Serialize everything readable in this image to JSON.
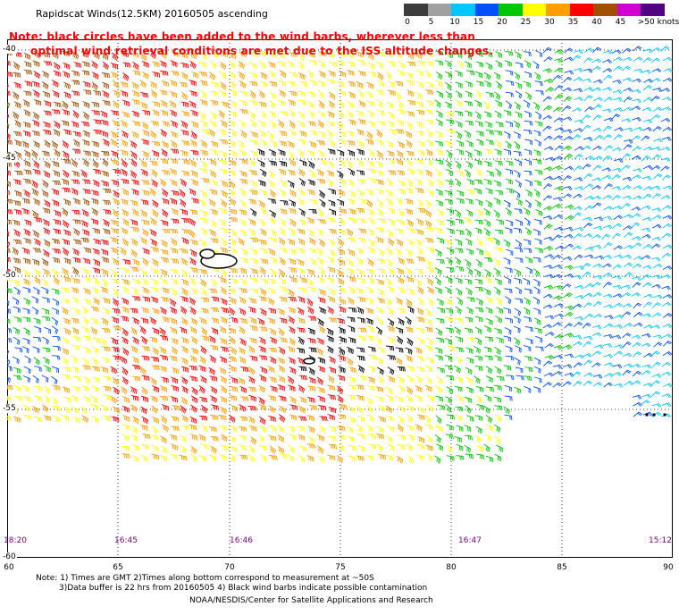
{
  "title": "Rapidscat Winds(12.5KM)  20160505  ascending",
  "note": {
    "line1": "Note: black circles have been added to the wind barbs, wherever less than",
    "line2": "optimal wind retrieval conditions are met due to the ISS altitude changes."
  },
  "colorbar": {
    "labels": [
      "0",
      "5",
      "10",
      "15",
      "20",
      "25",
      "30",
      "35",
      "40",
      "45",
      ">50 knots"
    ],
    "colors": [
      "#3c3c3c",
      "#a0a0a0",
      "#00c8ff",
      "#0050ff",
      "#00c800",
      "#ffff00",
      "#ffa000",
      "#ff0000",
      "#a05000",
      "#d000d0",
      "#500080"
    ]
  },
  "latitudes": [
    "-40",
    "-45",
    "-50",
    "-55",
    "-60"
  ],
  "longitudes": [
    "60",
    "65",
    "70",
    "75",
    "80",
    "85",
    "90"
  ],
  "times": [
    "18:20",
    "16:45",
    "16:46",
    "16:47",
    "15:12"
  ],
  "footnotes": {
    "line1": "Note: 1) Times are GMT 2)Times along bottom correspond to measurement at ~50S",
    "line2": "3)Data buffer is 22 hrs from 20160505 4) Black wind barbs indicate possible contamination",
    "line3": "NOAA/NESDIS/Center for Satellite Applications and Research"
  }
}
